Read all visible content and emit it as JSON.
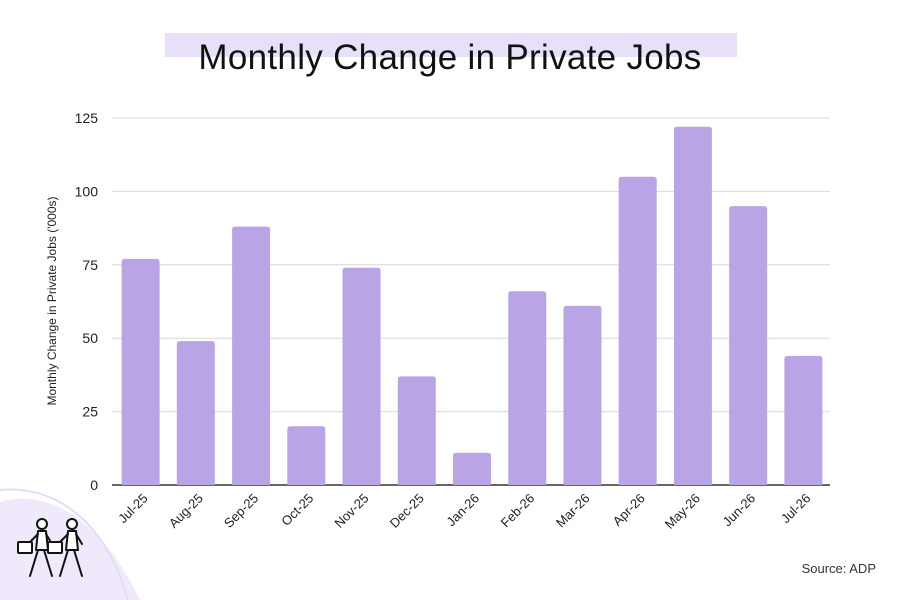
{
  "page": {
    "title": "Monthly Change in Private Jobs",
    "source": "Source: ADP",
    "icons": {
      "decoration": "commuters-icon"
    },
    "colors": {
      "bar": "#b9a4e6",
      "title_highlight": "#e8dff8",
      "grid": "#d9d9d9",
      "axis": "#333333"
    }
  },
  "chart_data": {
    "type": "bar",
    "categories": [
      "Jul-25",
      "Aug-25",
      "Sep-25",
      "Oct-25",
      "Nov-25",
      "Dec-25",
      "Jan-26",
      "Feb-26",
      "Mar-26",
      "Apr-26",
      "May-26",
      "Jun-26",
      "Jul-26"
    ],
    "values": [
      77,
      49,
      88,
      20,
      74,
      37,
      11,
      66,
      61,
      105,
      122,
      95,
      44
    ],
    "title": "Monthly Change in Private Jobs",
    "xlabel": "",
    "ylabel": "Monthly Change in Private Jobs ('000s)",
    "ylim": [
      0,
      125
    ],
    "yticks": [
      0,
      25,
      50,
      75,
      100,
      125
    ],
    "grid": true,
    "legend": "none"
  }
}
